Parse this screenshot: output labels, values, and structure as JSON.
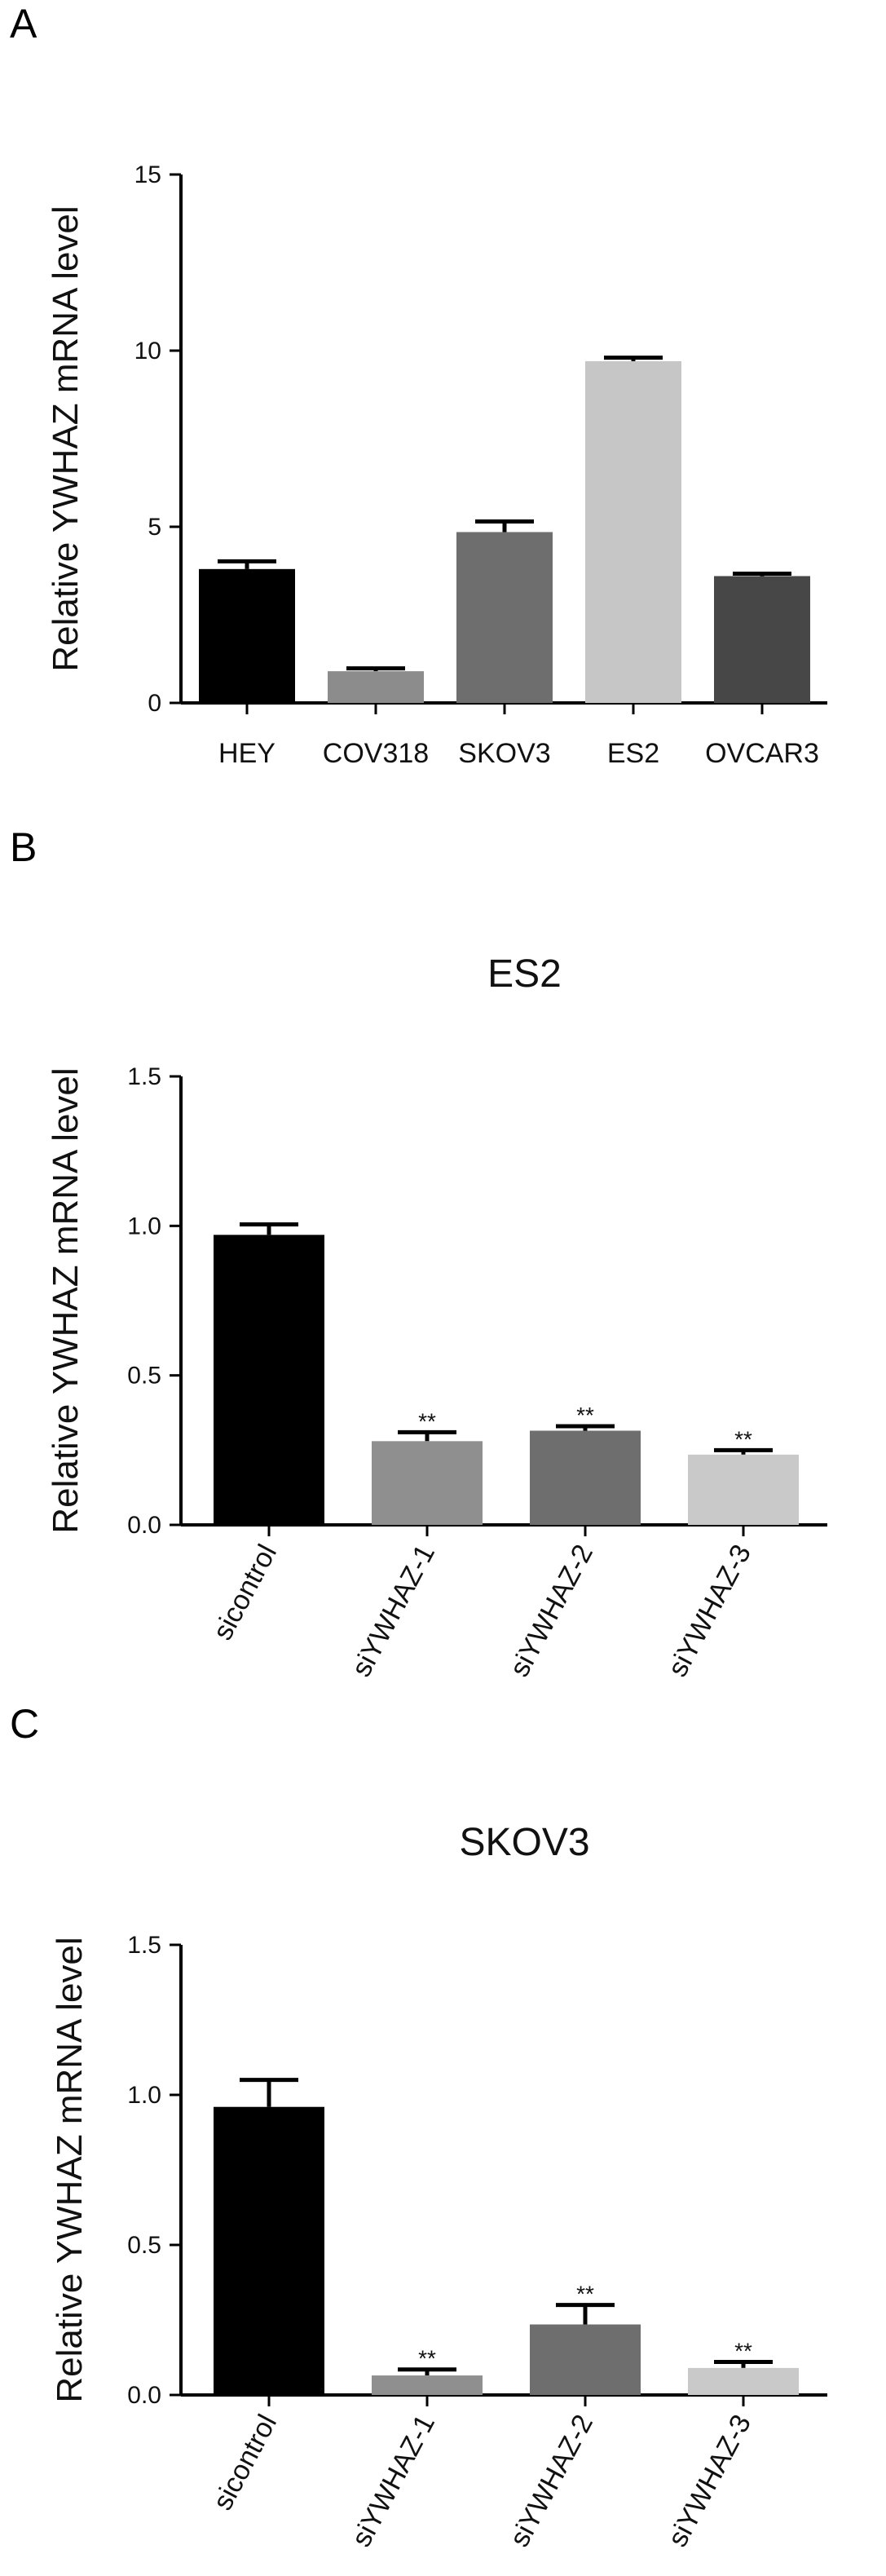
{
  "figure": {
    "panels": [
      {
        "letter": "A"
      },
      {
        "letter": "B"
      },
      {
        "letter": "C"
      }
    ]
  },
  "chart_data": [
    {
      "type": "bar",
      "title": "",
      "ylabel": "Relative YWHAZ mRNA level",
      "xlabel": "",
      "ylim": [
        0,
        15
      ],
      "yticks": [
        0,
        5,
        10,
        15
      ],
      "ytick_labels": [
        "0",
        "5",
        "10",
        "15"
      ],
      "categories": [
        "HEY",
        "COV318",
        "SKOV3",
        "ES2",
        "OVCAR3"
      ],
      "values": [
        3.8,
        0.9,
        4.85,
        9.7,
        3.6
      ],
      "errors": [
        0.22,
        0.08,
        0.3,
        0.1,
        0.07
      ],
      "colors": [
        "#000000",
        "#8c8c8c",
        "#6e6e6e",
        "#c6c6c6",
        "#474747"
      ],
      "significance": [
        "",
        "",
        "",
        "",
        ""
      ],
      "rotated_labels": false,
      "legend": "none",
      "grid": false
    },
    {
      "type": "bar",
      "title": "ES2",
      "ylabel": "Relative YWHAZ mRNA level",
      "xlabel": "",
      "ylim": [
        0,
        1.5
      ],
      "yticks": [
        0,
        0.5,
        1.0,
        1.5
      ],
      "ytick_labels": [
        "0.0",
        "0.5",
        "1.0",
        "1.5"
      ],
      "categories": [
        "sicontrol",
        "siYWHAZ-1",
        "siYWHAZ-2",
        "siYWHAZ-3"
      ],
      "values": [
        0.97,
        0.28,
        0.315,
        0.235
      ],
      "errors": [
        0.035,
        0.03,
        0.015,
        0.015
      ],
      "colors": [
        "#000000",
        "#8f8f8f",
        "#6e6e6e",
        "#c9c9c9"
      ],
      "significance": [
        "",
        "**",
        "**",
        "**"
      ],
      "rotated_labels": true,
      "legend": "none",
      "grid": false
    },
    {
      "type": "bar",
      "title": "SKOV3",
      "ylabel": "Relative YWHAZ mRNA level",
      "xlabel": "",
      "ylim": [
        0,
        1.5
      ],
      "yticks": [
        0,
        0.5,
        1.0,
        1.5
      ],
      "ytick_labels": [
        "0.0",
        "0.5",
        "1.0",
        "1.5"
      ],
      "categories": [
        "sicontrol",
        "siYWHAZ-1",
        "siYWHAZ-2",
        "siYWHAZ-3"
      ],
      "values": [
        0.96,
        0.065,
        0.235,
        0.09
      ],
      "errors": [
        0.09,
        0.02,
        0.065,
        0.02
      ],
      "colors": [
        "#000000",
        "#8f8f8f",
        "#6e6e6e",
        "#c9c9c9"
      ],
      "significance": [
        "",
        "**",
        "**",
        "**"
      ],
      "rotated_labels": true,
      "legend": "none",
      "grid": false
    }
  ]
}
